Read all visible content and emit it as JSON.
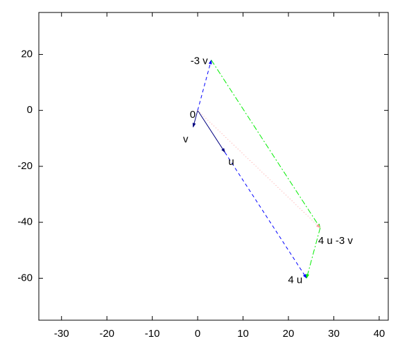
{
  "chart_data": {
    "type": "vector",
    "xlim": [
      -35,
      42
    ],
    "ylim": [
      -75,
      35
    ],
    "xticks": [
      -30,
      -20,
      -10,
      0,
      10,
      20,
      30,
      40
    ],
    "yticks": [
      -60,
      -40,
      -20,
      0,
      20
    ],
    "points": {
      "labels": [
        "0",
        "v",
        "u",
        "-3 v",
        "4 u",
        "4 u -3 v"
      ],
      "x": [
        0,
        -1,
        6,
        3,
        24,
        27
      ],
      "y": [
        0,
        -6,
        -15,
        18,
        -60,
        -42
      ]
    },
    "segments": [
      {
        "style": "solid",
        "color": "#000080",
        "x": [
          0,
          6
        ],
        "y": [
          0,
          -15
        ]
      },
      {
        "style": "solid",
        "color": "#000080",
        "x": [
          0,
          -1
        ],
        "y": [
          0,
          -6
        ]
      },
      {
        "style": "dashed",
        "color": "#0000ff",
        "x": [
          0,
          3
        ],
        "y": [
          0,
          18
        ]
      },
      {
        "style": "dashed",
        "color": "#0000ff",
        "x": [
          6,
          24
        ],
        "y": [
          -15,
          -60
        ]
      },
      {
        "style": "dashdot",
        "color": "#00ee00",
        "x": [
          3,
          27
        ],
        "y": [
          18,
          -42
        ]
      },
      {
        "style": "dashdot",
        "color": "#00ee00",
        "x": [
          27,
          24
        ],
        "y": [
          -42,
          -60
        ]
      },
      {
        "style": "dotted",
        "color": "#ffa0a0",
        "x": [
          0,
          27
        ],
        "y": [
          0,
          -42
        ]
      }
    ]
  }
}
